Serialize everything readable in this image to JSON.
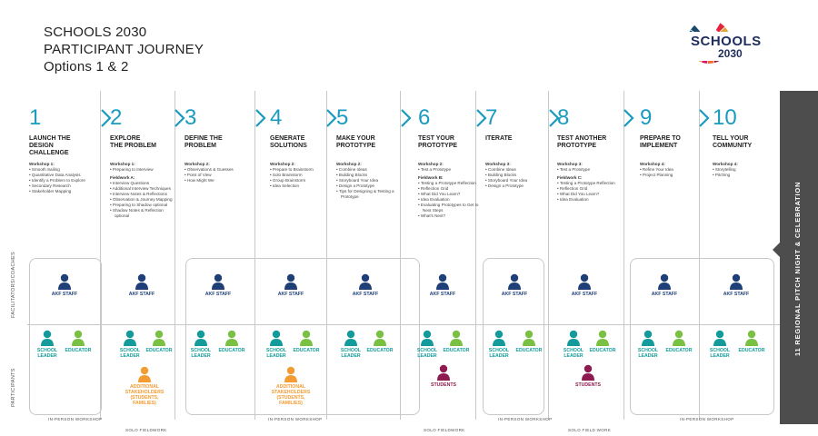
{
  "title": {
    "line1": "SCHOOLS 2030",
    "line2": "PARTICIPANT JOURNEY",
    "line3": "Options 1 & 2"
  },
  "logo": {
    "text1": "SCHOOLS",
    "text2": "2030",
    "ring_colors": [
      "#e5243b",
      "#dda63a",
      "#4c9f38",
      "#c5192d",
      "#ff3a21",
      "#26bde2",
      "#fcc30b",
      "#a21942",
      "#fd6925",
      "#dd1367",
      "#fd9d24",
      "#bf8b2e",
      "#3f7e44",
      "#0a97d9",
      "#56c02b",
      "#00689d",
      "#19486a"
    ]
  },
  "colors": {
    "accent": "#1a9bbf",
    "staff": "#1e3f78",
    "leader": "#139b9b",
    "educator": "#7ac143",
    "stakeholder": "#f39c33",
    "student": "#8e1b4f",
    "pitch": "#4d4d4d"
  },
  "side_labels": {
    "facilitators": "FACILITATORS/COACHES",
    "participants": "PARTICIPANTS"
  },
  "stages": [
    {
      "num": "1",
      "name": [
        "LAUNCH THE",
        "DESIGN CHALLENGE"
      ],
      "blocks": [
        {
          "head": "Workshop 1:",
          "items": [
            "Smooth Sailing",
            "Quantitative Data Analysis",
            "Identify a Problem to Explore",
            "Secondary Research",
            "Stakeholder Mapping"
          ]
        }
      ]
    },
    {
      "num": "2",
      "name": [
        "EXPLORE",
        "THE PROBLEM"
      ],
      "blocks": [
        {
          "head": "Workshop 1:",
          "items": [
            "Preparing to Interview"
          ]
        },
        {
          "head": "Fieldwork A:",
          "items": [
            "Interview Questions",
            "Additional Interview Techniques",
            "Interview Notes & Reflections",
            "Observation & Journey Mapping",
            "Preparing to Shadow optional",
            "Shadow Notes & Reflection optional"
          ]
        }
      ]
    },
    {
      "num": "3",
      "name": [
        "DEFINE THE",
        "PROBLEM"
      ],
      "blocks": [
        {
          "head": "Workshop 2:",
          "items": [
            "Observations & Guesses",
            "Point of View",
            "How Might We"
          ]
        }
      ]
    },
    {
      "num": "4",
      "name": [
        "GENERATE",
        "SOLUTIONS"
      ],
      "blocks": [
        {
          "head": "Workshop 2:",
          "items": [
            "Prepare to Brainstorm",
            "Solo Brainstorm",
            "Group Brainstorm",
            "Idea Selection"
          ]
        }
      ]
    },
    {
      "num": "5",
      "name": [
        "MAKE YOUR",
        "PROTOTYPE"
      ],
      "blocks": [
        {
          "head": "Workshop 2:",
          "items": [
            "Combine Ideas",
            "Building Blocks",
            "Storyboard Your Idea",
            "Design a Prototype",
            "Tips for Designing & Testing a Prototype"
          ]
        }
      ]
    },
    {
      "num": "6",
      "name": [
        "TEST YOUR",
        "PROTOTYPE"
      ],
      "blocks": [
        {
          "head": "Workshop 2:",
          "items": [
            "Test a Prototype"
          ]
        },
        {
          "head": "Fieldwork B:",
          "items": [
            "Testing a Prototype Reflection",
            "Reflection Grid",
            "What Did You Learn?",
            "Idea Evaluation",
            "Evaluating Prototypes to Get to Next Steps",
            "What's Next?"
          ]
        }
      ]
    },
    {
      "num": "7",
      "name": [
        "ITERATE",
        ""
      ],
      "blocks": [
        {
          "head": "Workshop 3:",
          "items": [
            "Combine Ideas",
            "Building Blocks",
            "Storyboard Your Idea",
            "Design a Prototype"
          ]
        }
      ]
    },
    {
      "num": "8",
      "name": [
        "TEST ANOTHER",
        "PROTOTYPE"
      ],
      "blocks": [
        {
          "head": "Workshop 3:",
          "items": [
            "Test a Prototype"
          ]
        },
        {
          "head": "Fieldwork C:",
          "items": [
            "Testing a Prototype Reflection",
            "Reflection Grid",
            "What Did You Learn?",
            "Idea Evaluation"
          ]
        }
      ]
    },
    {
      "num": "9",
      "name": [
        "PREPARE TO",
        "IMPLEMENT"
      ],
      "blocks": [
        {
          "head": "Workshop 4:",
          "items": [
            "Refine Your Idea",
            "Project Planning"
          ]
        }
      ]
    },
    {
      "num": "10",
      "name": [
        "TELL YOUR",
        "COMMUNITY"
      ],
      "blocks": [
        {
          "head": "Workshop 4:",
          "items": [
            "Storytelling",
            "Pitching"
          ]
        }
      ]
    }
  ],
  "people": {
    "staff": "AKF STAFF",
    "leader": [
      "SCHOOL",
      "LEADER"
    ],
    "educator": "EDUCATOR",
    "stakeholders": [
      "ADDITIONAL",
      "STAKEHOLDERS",
      "(STUDENTS,",
      "FAMILIES)"
    ],
    "students": "STUDENTS"
  },
  "bottom_labels": {
    "in_person": "IN-PERSON WORKSHOP",
    "solo": "SOLO FIELDWORK",
    "solo_field": "SOLO FIELD WORK"
  },
  "pitch": "11 REGIONAL PITCH NIGHT & CELEBRATION"
}
